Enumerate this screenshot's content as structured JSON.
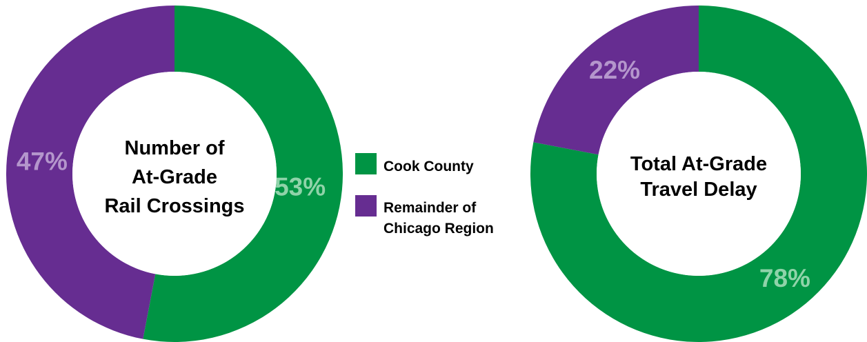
{
  "colors": {
    "cook": "#009444",
    "remainder": "#662d91",
    "cook_label": "#8fd3a9",
    "remainder_label": "#b496cc"
  },
  "legend": {
    "items": [
      {
        "label_lines": [
          "Cook County"
        ],
        "color": "#009444"
      },
      {
        "label_lines": [
          "Remainder of",
          "Chicago Region"
        ],
        "color": "#662d91"
      }
    ]
  },
  "chart_data": [
    {
      "type": "pie",
      "title_lines": [
        "Number of",
        "At-Grade",
        "Rail Crossings"
      ],
      "slices": [
        {
          "label": "Cook County",
          "value": 53,
          "display": "53%",
          "color": "#009444",
          "label_color": "#8fd3a9"
        },
        {
          "label": "Remainder of Chicago Region",
          "value": 47,
          "display": "47%",
          "color": "#662d91",
          "label_color": "#b496cc"
        }
      ]
    },
    {
      "type": "pie",
      "title_lines": [
        "Total At-Grade",
        "Travel Delay"
      ],
      "slices": [
        {
          "label": "Cook County",
          "value": 78,
          "display": "78%",
          "color": "#009444",
          "label_color": "#8fd3a9"
        },
        {
          "label": "Remainder of Chicago Region",
          "value": 22,
          "display": "22%",
          "color": "#662d91",
          "label_color": "#b496cc"
        }
      ]
    }
  ]
}
